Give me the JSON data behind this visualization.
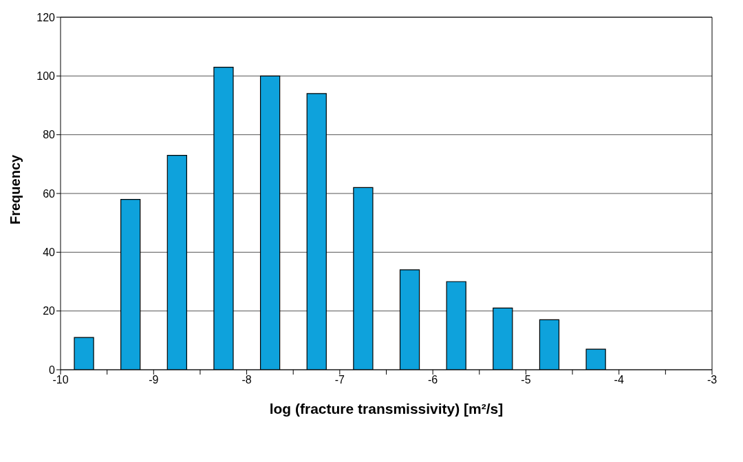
{
  "chart_data": {
    "type": "histogram",
    "xlabel": "log (fracture transmissivity) [m²/s]",
    "ylabel": "Frequency",
    "bins": [
      -10,
      -9.5,
      -9,
      -8.5,
      -8,
      -7.5,
      -7,
      -6.5,
      -6,
      -5.5,
      -5,
      -4.5,
      -4,
      -3.5,
      -3
    ],
    "values": [
      11,
      58,
      73,
      103,
      100,
      94,
      62,
      34,
      30,
      21,
      17,
      7,
      0,
      0
    ],
    "color": "#0ea2dc",
    "xlim": [
      -10,
      -3
    ],
    "xticks": [
      -10,
      {
        "value": -9.5,
        "label": null
      },
      -9,
      {
        "value": -8.5,
        "label": null
      },
      -8,
      {
        "value": -7.5,
        "label": null
      },
      -7,
      {
        "value": -6.5,
        "label": null
      },
      -6,
      {
        "value": -5.5,
        "label": null
      },
      -5,
      {
        "value": -4.5,
        "label": null
      },
      -4,
      {
        "value": -3.5,
        "label": null
      },
      -3
    ],
    "ylim": [
      0,
      120
    ],
    "yticks": [
      0,
      20,
      40,
      60,
      80,
      100,
      120
    ],
    "grid": "y"
  }
}
